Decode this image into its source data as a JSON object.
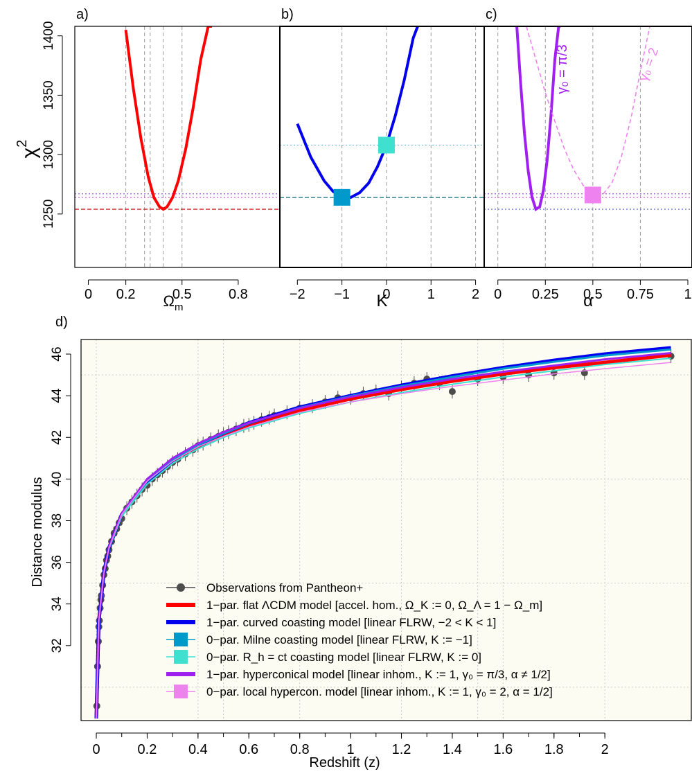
{
  "colors": {
    "lcdm": "#ff0000",
    "curved": "#0000ee",
    "milne": "#0099cc",
    "rhct": "#40e0d0",
    "hyper": "#a020f0",
    "local": "#ee82ee",
    "obs": "#4d4d4d",
    "panel_bg": "#fcfcf2"
  },
  "chart_data": [
    {
      "panel": "a)",
      "type": "line",
      "xlabel": "Ω",
      "xlabel_sub": "m",
      "ylabel": "χ",
      "ylabel_sup": "2",
      "xlim": [
        -0.05,
        1.0
      ],
      "ylim": [
        1205,
        1408
      ],
      "x_ticks": [
        "0",
        "0.2",
        "0.5",
        "0.8"
      ],
      "x_tick_values": [
        0,
        0.2,
        0.5,
        0.8
      ],
      "y_ticks": [
        "1250",
        "1300",
        "1350",
        "1400"
      ],
      "y_tick_values": [
        1250,
        1300,
        1350,
        1400
      ],
      "series": [
        {
          "color_key": "lcdm",
          "x": [
            0.2,
            0.24,
            0.28,
            0.32,
            0.35,
            0.38,
            0.4,
            0.42,
            0.45,
            0.48,
            0.52,
            0.56,
            0.6,
            0.64,
            0.66
          ],
          "y": [
            1405,
            1356,
            1314,
            1281,
            1264,
            1256,
            1254,
            1256,
            1264,
            1278,
            1305,
            1340,
            1380,
            1408,
            1408
          ]
        }
      ],
      "hlines": [
        1254,
        1264,
        1267
      ],
      "vlines": [
        0.2,
        0.3,
        0.33,
        0.4,
        0.5
      ]
    },
    {
      "panel": "b)",
      "type": "line",
      "xlabel": "K",
      "xlim": [
        -2.3,
        2.1
      ],
      "ylim": [
        1205,
        1408
      ],
      "x_ticks": [
        "−2",
        "−1",
        "0",
        "1",
        "2"
      ],
      "x_tick_values": [
        -2,
        -1,
        0,
        1,
        2
      ],
      "series": [
        {
          "color_key": "curved",
          "x": [
            -2.0,
            -1.7,
            -1.4,
            -1.2,
            -1.0,
            -0.8,
            -0.6,
            -0.4,
            -0.2,
            0.0,
            0.2,
            0.4,
            0.6,
            0.7
          ],
          "y": [
            1326,
            1298,
            1278,
            1269,
            1264,
            1264,
            1268,
            1276,
            1290,
            1308,
            1333,
            1363,
            1398,
            1408
          ]
        }
      ],
      "points": [
        {
          "label": "Milne",
          "x": -1,
          "y": 1264,
          "color_key": "milne"
        },
        {
          "label": "Rh=ct",
          "x": 0,
          "y": 1308,
          "color_key": "rhct"
        }
      ],
      "hlines": [
        1264,
        1308
      ],
      "vlines": [
        -1,
        0,
        1,
        2
      ]
    },
    {
      "panel": "c)",
      "type": "line",
      "xlabel": "α",
      "xlim": [
        -0.05,
        1.0
      ],
      "ylim": [
        1205,
        1408
      ],
      "x_ticks": [
        "0",
        "0.25",
        "0.5",
        "0.75",
        "1"
      ],
      "x_tick_values": [
        0,
        0.25,
        0.5,
        0.75,
        1
      ],
      "annotations": [
        "γ₀ = π/3",
        "γ₀ = 2"
      ],
      "series": [
        {
          "color_key": "hyper",
          "name": "γ₀ = π/3",
          "x": [
            0.1,
            0.12,
            0.14,
            0.16,
            0.18,
            0.2,
            0.22,
            0.24,
            0.26,
            0.28,
            0.3,
            0.32,
            0.33
          ],
          "y": [
            1408,
            1360,
            1318,
            1286,
            1264,
            1254,
            1256,
            1270,
            1296,
            1334,
            1380,
            1408,
            1408
          ]
        },
        {
          "color_key": "local",
          "name": "γ₀ = 2",
          "dashed": true,
          "x": [
            0.15,
            0.2,
            0.25,
            0.3,
            0.35,
            0.4,
            0.45,
            0.5,
            0.55,
            0.6,
            0.65,
            0.7,
            0.75,
            0.8,
            0.82
          ],
          "y": [
            1408,
            1380,
            1352,
            1328,
            1305,
            1287,
            1274,
            1266,
            1266,
            1276,
            1298,
            1330,
            1370,
            1408,
            1408
          ]
        }
      ],
      "points": [
        {
          "label": "local hypercon.",
          "x": 0.5,
          "y": 1266,
          "color_key": "local"
        }
      ],
      "hlines": [
        1254,
        1264,
        1267
      ],
      "vlines": [
        0,
        0.25,
        0.5,
        0.75
      ]
    },
    {
      "panel": "d)",
      "type": "scatter",
      "xlabel": "Redshift (z)",
      "ylabel": "Distance modulus",
      "xlim": [
        -0.06,
        2.34
      ],
      "ylim": [
        28.4,
        46.7
      ],
      "x_ticks": [
        "0",
        "0.2",
        "0.4",
        "0.6",
        "0.8",
        "1",
        "1.2",
        "1.4",
        "1.6",
        "1.8",
        "2"
      ],
      "x_tick_values": [
        0,
        0.2,
        0.4,
        0.6,
        0.8,
        1.0,
        1.2,
        1.4,
        1.6,
        1.8,
        2.0
      ],
      "y_ticks": [
        "32",
        "34",
        "36",
        "38",
        "40",
        "42",
        "44",
        "46"
      ],
      "y_tick_values": [
        32,
        34,
        36,
        38,
        40,
        42,
        44,
        46
      ],
      "observations": [
        [
          0.002,
          29.1
        ],
        [
          0.005,
          31.0
        ],
        [
          0.008,
          32.2
        ],
        [
          0.01,
          32.9
        ],
        [
          0.012,
          33.2
        ],
        [
          0.015,
          33.8
        ],
        [
          0.018,
          34.2
        ],
        [
          0.02,
          34.4
        ],
        [
          0.025,
          34.9
        ],
        [
          0.03,
          35.4
        ],
        [
          0.035,
          35.7
        ],
        [
          0.04,
          36.1
        ],
        [
          0.045,
          36.3
        ],
        [
          0.05,
          36.6
        ],
        [
          0.06,
          37.0
        ],
        [
          0.07,
          37.4
        ],
        [
          0.08,
          37.6
        ],
        [
          0.09,
          37.9
        ],
        [
          0.1,
          38.1
        ],
        [
          0.12,
          38.6
        ],
        [
          0.14,
          38.9
        ],
        [
          0.16,
          39.2
        ],
        [
          0.18,
          39.5
        ],
        [
          0.2,
          39.7
        ],
        [
          0.22,
          40.0
        ],
        [
          0.24,
          40.2
        ],
        [
          0.26,
          40.4
        ],
        [
          0.28,
          40.6
        ],
        [
          0.3,
          40.8
        ],
        [
          0.32,
          40.95
        ],
        [
          0.35,
          41.2
        ],
        [
          0.38,
          41.4
        ],
        [
          0.4,
          41.6
        ],
        [
          0.42,
          41.7
        ],
        [
          0.45,
          41.9
        ],
        [
          0.48,
          42.05
        ],
        [
          0.5,
          42.15
        ],
        [
          0.52,
          42.25
        ],
        [
          0.55,
          42.4
        ],
        [
          0.58,
          42.55
        ],
        [
          0.6,
          42.6
        ],
        [
          0.62,
          42.7
        ],
        [
          0.65,
          42.85
        ],
        [
          0.68,
          42.95
        ],
        [
          0.7,
          43.05
        ],
        [
          0.75,
          43.2
        ],
        [
          0.8,
          43.4
        ],
        [
          0.85,
          43.5
        ],
        [
          0.9,
          43.7
        ],
        [
          0.95,
          43.9
        ],
        [
          1.0,
          43.9
        ],
        [
          1.05,
          44.1
        ],
        [
          1.1,
          44.2
        ],
        [
          1.15,
          44.1
        ],
        [
          1.2,
          44.4
        ],
        [
          1.25,
          44.6
        ],
        [
          1.3,
          44.8
        ],
        [
          1.35,
          44.6
        ],
        [
          1.4,
          44.2
        ],
        [
          1.5,
          44.8
        ],
        [
          1.6,
          44.9
        ],
        [
          1.7,
          45.0
        ],
        [
          1.8,
          45.1
        ],
        [
          1.92,
          45.1
        ],
        [
          2.26,
          45.9
        ]
      ],
      "series": [
        {
          "color_key": "lcdm",
          "x": [
            0,
            0.01,
            0.03,
            0.05,
            0.1,
            0.2,
            0.3,
            0.4,
            0.5,
            0.6,
            0.8,
            1.0,
            1.2,
            1.4,
            1.6,
            1.8,
            2.0,
            2.26
          ],
          "y": [
            28.5,
            33.2,
            35.5,
            36.7,
            38.3,
            39.9,
            40.9,
            41.6,
            42.1,
            42.6,
            43.3,
            43.85,
            44.3,
            44.7,
            45.05,
            45.35,
            45.6,
            45.95
          ]
        },
        {
          "color_key": "curved",
          "x": [
            0,
            0.01,
            0.03,
            0.05,
            0.1,
            0.2,
            0.3,
            0.4,
            0.5,
            0.6,
            0.8,
            1.0,
            1.2,
            1.4,
            1.6,
            1.8,
            2.0,
            2.26
          ],
          "y": [
            28.5,
            33.2,
            35.5,
            36.7,
            38.3,
            39.9,
            40.9,
            41.65,
            42.2,
            42.7,
            43.45,
            44.0,
            44.5,
            44.95,
            45.35,
            45.7,
            46.0,
            46.3
          ]
        },
        {
          "color_key": "milne",
          "x": [
            0,
            0.01,
            0.03,
            0.05,
            0.1,
            0.2,
            0.3,
            0.4,
            0.5,
            0.6,
            0.8,
            1.0,
            1.2,
            1.4,
            1.6,
            1.8,
            2.0,
            2.26
          ],
          "y": [
            28.5,
            33.2,
            35.5,
            36.7,
            38.3,
            39.9,
            40.9,
            41.63,
            42.18,
            42.68,
            43.42,
            43.98,
            44.46,
            44.9,
            45.3,
            45.63,
            45.93,
            46.22
          ]
        },
        {
          "color_key": "rhct",
          "x": [
            0,
            0.01,
            0.03,
            0.05,
            0.1,
            0.2,
            0.3,
            0.4,
            0.5,
            0.6,
            0.8,
            1.0,
            1.2,
            1.4,
            1.6,
            1.8,
            2.0,
            2.26
          ],
          "y": [
            28.5,
            33.2,
            35.45,
            36.65,
            38.2,
            39.75,
            40.75,
            41.45,
            42.0,
            42.45,
            43.15,
            43.7,
            44.15,
            44.55,
            44.9,
            45.2,
            45.5,
            45.8
          ]
        },
        {
          "color_key": "hyper",
          "x": [
            0,
            0.01,
            0.03,
            0.05,
            0.1,
            0.2,
            0.3,
            0.4,
            0.5,
            0.6,
            0.8,
            1.0,
            1.2,
            1.4,
            1.6,
            1.8,
            2.0,
            2.26
          ],
          "y": [
            28.5,
            33.2,
            35.5,
            36.75,
            38.35,
            40.0,
            41.0,
            41.7,
            42.25,
            42.7,
            43.4,
            43.95,
            44.4,
            44.8,
            45.15,
            45.45,
            45.75,
            46.05
          ]
        },
        {
          "color_key": "local",
          "x": [
            0,
            0.01,
            0.03,
            0.05,
            0.1,
            0.2,
            0.3,
            0.4,
            0.5,
            0.6,
            0.8,
            1.0,
            1.2,
            1.4,
            1.6,
            1.8,
            2.0,
            2.26
          ],
          "y": [
            28.5,
            33.2,
            35.5,
            36.7,
            38.3,
            39.9,
            40.85,
            41.55,
            42.05,
            42.5,
            43.2,
            43.7,
            44.1,
            44.45,
            44.75,
            45.05,
            45.3,
            45.6
          ]
        }
      ],
      "legend": [
        {
          "label": "Observations from Pantheon+",
          "color_key": "obs",
          "marker": "circle"
        },
        {
          "label": "1−par. flat ΛCDM model [accel. hom.,  Ω_K := 0, Ω_Λ  = 1 − Ω_m]",
          "color_key": "lcdm",
          "marker": "line"
        },
        {
          "label": "1−par. curved coasting model [linear FLRW, −2 < K < 1]",
          "color_key": "curved",
          "marker": "line"
        },
        {
          "label": "0−par. Milne coasting model [linear FLRW, K := −1]",
          "color_key": "milne",
          "marker": "square"
        },
        {
          "label": "0−par. R_h = ct coasting model [linear FLRW, K := 0]",
          "color_key": "rhct",
          "marker": "square"
        },
        {
          "label": "1−par. hyperconical model [linear inhom.,  K := 1, γ₀ = π/3, α ≠ 1/2]",
          "color_key": "hyper",
          "marker": "line"
        },
        {
          "label": "0−par. local hypercon. model [linear inhom.,  K := 1, γ₀ = 2, α = 1/2]",
          "color_key": "local",
          "marker": "square"
        }
      ],
      "legend_position": "bottom-right"
    }
  ]
}
